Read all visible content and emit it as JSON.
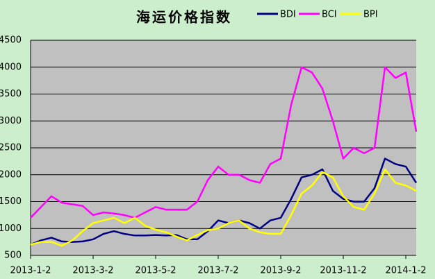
{
  "chart_data": {
    "type": "line",
    "title": "海运价格指数",
    "categories": [
      "2013-1-2",
      null,
      null,
      null,
      null,
      null,
      "2013-3-2",
      null,
      null,
      null,
      null,
      null,
      "2013-5-2",
      null,
      null,
      null,
      null,
      null,
      "2013-7-2",
      null,
      null,
      null,
      null,
      null,
      "2013-9-2",
      null,
      null,
      null,
      null,
      null,
      "2013-11-2",
      null,
      null,
      null,
      null,
      null,
      "2014-1-2",
      null
    ],
    "series": [
      {
        "name": "BDI",
        "color": "#000080",
        "values": [
          700,
          780,
          830,
          760,
          750,
          760,
          800,
          900,
          950,
          900,
          870,
          870,
          880,
          870,
          880,
          800,
          800,
          950,
          1150,
          1100,
          1150,
          1100,
          1000,
          1150,
          1200,
          1550,
          1950,
          2000,
          2100,
          1700,
          1550,
          1500,
          1500,
          1750,
          2300,
          2200,
          2150,
          1850
        ]
      },
      {
        "name": "BCI",
        "color": "#ff00ff",
        "values": [
          1200,
          1400,
          1600,
          1480,
          1450,
          1420,
          1250,
          1300,
          1280,
          1250,
          1200,
          1300,
          1400,
          1350,
          1350,
          1350,
          1500,
          1900,
          2150,
          2000,
          2000,
          1900,
          1850,
          2200,
          2300,
          3300,
          4000,
          3900,
          3600,
          3000,
          2300,
          2500,
          2400,
          2500,
          4000,
          3800,
          3900,
          2800
        ]
      },
      {
        "name": "BPI",
        "color": "#ffff00",
        "values": [
          700,
          750,
          750,
          680,
          780,
          950,
          1100,
          1150,
          1200,
          1100,
          1200,
          1050,
          980,
          930,
          850,
          780,
          880,
          970,
          1000,
          1100,
          1150,
          1000,
          930,
          900,
          900,
          1250,
          1650,
          1800,
          2050,
          1950,
          1600,
          1400,
          1350,
          1650,
          2100,
          1850,
          1800,
          1700
        ]
      }
    ],
    "ylim": [
      500,
      4500
    ],
    "yticks": [
      500,
      1000,
      1500,
      2000,
      2500,
      3000,
      3500,
      4000,
      4500
    ],
    "grid": true
  }
}
